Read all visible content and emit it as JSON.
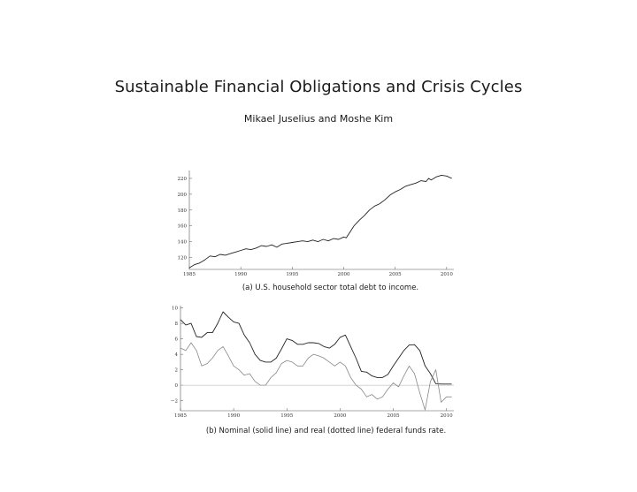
{
  "title": "Sustainable Financial Obligations and Crisis Cycles",
  "authors": "Mikael Juselius and Moshe Kim",
  "chart_data": [
    {
      "type": "line",
      "caption": "(a) U.S. household sector total debt to income.",
      "xlim": [
        1985,
        2010.7
      ],
      "ylim": [
        105,
        230
      ],
      "x_ticks": [
        1985,
        1990,
        1995,
        2000,
        2005,
        2010
      ],
      "y_ticks": [
        120,
        140,
        160,
        180,
        200,
        220
      ],
      "series": [
        {
          "style": "solid",
          "x": [
            1985.0,
            1985.5,
            1986.0,
            1986.5,
            1987.0,
            1987.5,
            1988.0,
            1988.5,
            1989.0,
            1989.5,
            1990.0,
            1990.5,
            1991.0,
            1991.5,
            1992.0,
            1992.5,
            1993.0,
            1993.5,
            1994.0,
            1994.5,
            1995.0,
            1995.5,
            1996.0,
            1996.5,
            1997.0,
            1997.5,
            1998.0,
            1998.5,
            1999.0,
            1999.5,
            2000.0,
            2000.25,
            2000.5,
            2000.75,
            2001.0,
            2001.5,
            2002.0,
            2002.5,
            2003.0,
            2003.5,
            2004.0,
            2004.5,
            2005.0,
            2005.5,
            2006.0,
            2006.5,
            2007.0,
            2007.5,
            2008.0,
            2008.25,
            2008.5,
            2009.0,
            2009.5,
            2010.0,
            2010.5
          ],
          "y": [
            107,
            111,
            113,
            117,
            122,
            121,
            124,
            123,
            125,
            127,
            129,
            131,
            130,
            132,
            135,
            134,
            136,
            133,
            137,
            138,
            139,
            140,
            141,
            140,
            142,
            140,
            143,
            141,
            144,
            143,
            146,
            145,
            150,
            155,
            160,
            167,
            173,
            180,
            185,
            188,
            193,
            199,
            203,
            206,
            210,
            212,
            214,
            217,
            216,
            220,
            218,
            222,
            224,
            223,
            220
          ]
        }
      ]
    },
    {
      "type": "line",
      "caption": "(b) Nominal (solid line) and real (dotted line) federal funds rate.",
      "xlim": [
        1985,
        2010.7
      ],
      "ylim": [
        -3.3,
        10.3
      ],
      "x_ticks": [
        1985,
        1990,
        1995,
        2000,
        2005,
        2010
      ],
      "y_ticks": [
        -2,
        0,
        2,
        4,
        6,
        8,
        10
      ],
      "reference_line": 0,
      "series": [
        {
          "style": "solid",
          "x": [
            1985.0,
            1985.5,
            1986.0,
            1986.5,
            1987.0,
            1987.5,
            1988.0,
            1988.5,
            1989.0,
            1989.5,
            1990.0,
            1990.5,
            1991.0,
            1991.5,
            1992.0,
            1992.5,
            1993.0,
            1993.5,
            1994.0,
            1994.5,
            1995.0,
            1995.5,
            1996.0,
            1996.5,
            1997.0,
            1997.5,
            1998.0,
            1998.5,
            1999.0,
            1999.5,
            2000.0,
            2000.5,
            2001.0,
            2001.5,
            2002.0,
            2002.5,
            2003.0,
            2003.5,
            2004.0,
            2004.5,
            2005.0,
            2005.5,
            2006.0,
            2006.5,
            2007.0,
            2007.5,
            2008.0,
            2008.5,
            2009.0,
            2009.5,
            2010.0,
            2010.5
          ],
          "y": [
            8.5,
            7.8,
            8.0,
            6.3,
            6.2,
            6.8,
            6.8,
            8.0,
            9.5,
            8.8,
            8.2,
            8.0,
            6.5,
            5.5,
            4.0,
            3.2,
            3.0,
            3.0,
            3.5,
            4.7,
            6.0,
            5.8,
            5.3,
            5.3,
            5.5,
            5.5,
            5.4,
            5.0,
            4.8,
            5.3,
            6.2,
            6.5,
            5.0,
            3.5,
            1.8,
            1.7,
            1.2,
            1.0,
            1.0,
            1.4,
            2.5,
            3.5,
            4.5,
            5.2,
            5.25,
            4.5,
            2.5,
            1.5,
            0.2,
            0.15,
            0.15,
            0.15
          ]
        },
        {
          "style": "dotted",
          "x": [
            1985.0,
            1985.5,
            1986.0,
            1986.5,
            1987.0,
            1987.5,
            1988.0,
            1988.5,
            1989.0,
            1989.5,
            1990.0,
            1990.5,
            1991.0,
            1991.5,
            1992.0,
            1992.5,
            1993.0,
            1993.5,
            1994.0,
            1994.5,
            1995.0,
            1995.5,
            1996.0,
            1996.5,
            1997.0,
            1997.5,
            1998.0,
            1998.5,
            1999.0,
            1999.5,
            2000.0,
            2000.5,
            2001.0,
            2001.5,
            2002.0,
            2002.5,
            2003.0,
            2003.5,
            2004.0,
            2004.5,
            2005.0,
            2005.5,
            2006.0,
            2006.5,
            2007.0,
            2007.5,
            2008.0,
            2008.5,
            2009.0,
            2009.5,
            2010.0,
            2010.5
          ],
          "y": [
            4.8,
            4.5,
            5.5,
            4.5,
            2.5,
            2.8,
            3.5,
            4.5,
            5.0,
            3.8,
            2.5,
            2.0,
            1.3,
            1.5,
            0.5,
            0.0,
            0.0,
            1.0,
            1.6,
            2.8,
            3.2,
            3.0,
            2.5,
            2.5,
            3.5,
            4.0,
            3.8,
            3.5,
            3.0,
            2.5,
            3.0,
            2.5,
            1.0,
            0.0,
            -0.5,
            -1.5,
            -1.2,
            -1.8,
            -1.5,
            -0.5,
            0.3,
            -0.2,
            1.2,
            2.5,
            1.5,
            -1.0,
            -3.2,
            0.5,
            2.0,
            -2.2,
            -1.5,
            -1.5
          ]
        }
      ]
    }
  ]
}
